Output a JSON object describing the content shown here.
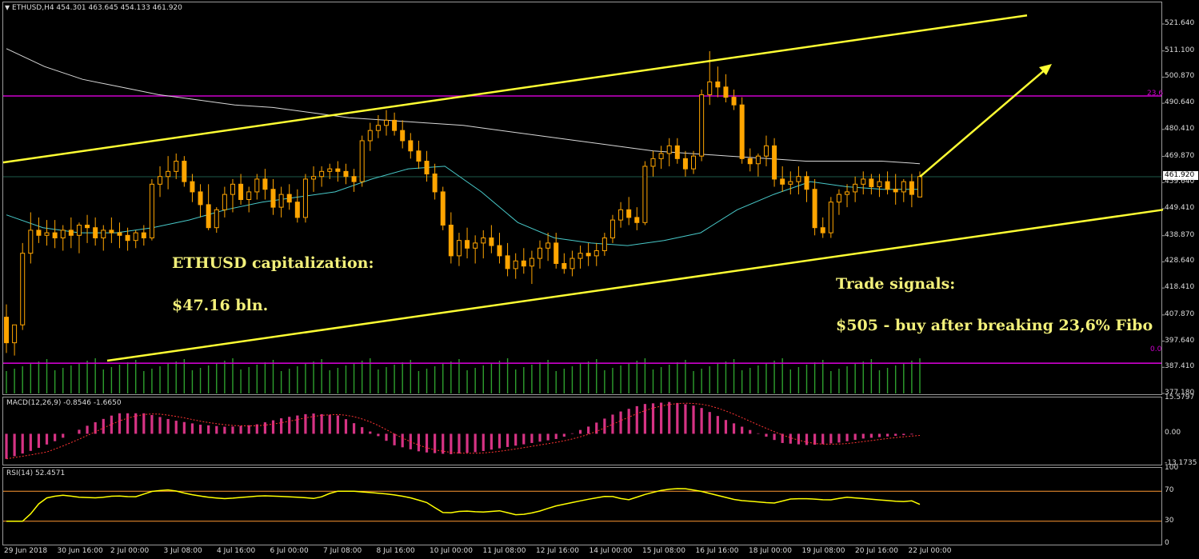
{
  "header": {
    "symbol_text": "ETHUSD,H4  454.301 463.645 454.133 461.920",
    "macd_text": "MACD(12,26,9) -0.8546 -1.6650",
    "rsi_text": "RSI(14) 52.4571"
  },
  "price_axis": [
    "521.640",
    "511.100",
    "500.870",
    "490.640",
    "480.410",
    "469.870",
    "459.640",
    "449.410",
    "438.870",
    "428.640",
    "418.410",
    "407.870",
    "397.640",
    "387.410",
    "377.180"
  ],
  "current_price": "461.920",
  "macd_axis": [
    "15.5797",
    "0.00",
    "-13.1735"
  ],
  "rsi_axis": [
    "100",
    "70",
    "30",
    "0"
  ],
  "time_axis": [
    "29 Jun 2018",
    "30 Jun 16:00",
    "2 Jul 00:00",
    "3 Jul 08:00",
    "4 Jul 16:00",
    "6 Jul 00:00",
    "7 Jul 08:00",
    "8 Jul 16:00",
    "10 Jul 00:00",
    "11 Jul 08:00",
    "12 Jul 16:00",
    "14 Jul 00:00",
    "15 Jul 08:00",
    "16 Jul 16:00",
    "18 Jul 00:00",
    "19 Jul 08:00",
    "20 Jul 16:00",
    "22 Jul 00:00"
  ],
  "fibo_levels": {
    "upper": "23.6",
    "lower": "0.0"
  },
  "annotations": {
    "cap_title": "ETHUSD capitalization:",
    "cap_value": "$47.16 bln.",
    "signals_title": "Trade signals:",
    "signals_text": "$505 - buy after breaking 23,6% Fibo"
  },
  "colors": {
    "background": "#000000",
    "candle": "#ffa500",
    "channel": "#ffff33",
    "fibo": "#cc00cc",
    "ma_slow": "#ffffff",
    "ma_fast": "#48c9c9",
    "volume": "#2ea02e",
    "macd": "#d63384",
    "rsi": "#ffff00",
    "rsi_levels": "#ff9933"
  },
  "chart_data": {
    "type": "candlestick",
    "instrument": "ETHUSD",
    "timeframe": "H4",
    "ylim": [
      377.18,
      521.64
    ],
    "bars": [
      [
        407,
        412,
        393,
        397
      ],
      [
        397,
        404,
        392,
        404
      ],
      [
        404,
        436,
        402,
        432
      ],
      [
        432,
        448,
        428,
        441
      ],
      [
        441,
        446,
        436,
        439
      ],
      [
        439,
        445,
        435,
        440
      ],
      [
        440,
        445,
        434,
        438
      ],
      [
        438,
        443,
        433,
        441
      ],
      [
        441,
        446,
        434,
        439
      ],
      [
        439,
        444,
        432,
        443
      ],
      [
        443,
        447,
        436,
        442
      ],
      [
        442,
        446,
        435,
        438
      ],
      [
        438,
        443,
        433,
        441
      ],
      [
        441,
        446,
        436,
        440
      ],
      [
        440,
        444,
        434,
        439
      ],
      [
        439,
        442,
        433,
        437
      ],
      [
        437,
        441,
        434,
        440
      ],
      [
        440,
        443,
        435,
        438
      ],
      [
        438,
        461,
        437,
        459
      ],
      [
        459,
        466,
        454,
        462
      ],
      [
        462,
        470,
        457,
        464
      ],
      [
        464,
        471,
        461,
        468
      ],
      [
        468,
        470,
        458,
        460
      ],
      [
        460,
        463,
        452,
        456
      ],
      [
        456,
        459,
        446,
        451
      ],
      [
        451,
        459,
        441,
        442
      ],
      [
        442,
        450,
        440,
        449
      ],
      [
        449,
        458,
        446,
        455
      ],
      [
        455,
        461,
        448,
        459
      ],
      [
        459,
        463,
        451,
        453
      ],
      [
        453,
        458,
        448,
        456
      ],
      [
        456,
        463,
        453,
        461
      ],
      [
        461,
        465,
        453,
        457
      ],
      [
        457,
        461,
        447,
        450
      ],
      [
        450,
        458,
        446,
        455
      ],
      [
        455,
        459,
        449,
        452
      ],
      [
        452,
        457,
        444,
        446
      ],
      [
        446,
        463,
        444,
        461
      ],
      [
        461,
        466,
        456,
        462
      ],
      [
        462,
        466,
        458,
        464
      ],
      [
        464,
        467,
        461,
        465
      ],
      [
        465,
        468,
        460,
        464
      ],
      [
        464,
        467,
        459,
        462
      ],
      [
        462,
        465,
        456,
        460
      ],
      [
        460,
        478,
        458,
        476
      ],
      [
        476,
        483,
        472,
        480
      ],
      [
        480,
        486,
        477,
        482
      ],
      [
        482,
        488,
        478,
        484
      ],
      [
        484,
        487,
        478,
        480
      ],
      [
        480,
        484,
        473,
        476
      ],
      [
        476,
        479,
        469,
        472
      ],
      [
        472,
        476,
        465,
        468
      ],
      [
        468,
        472,
        460,
        463
      ],
      [
        463,
        467,
        453,
        456
      ],
      [
        456,
        458,
        441,
        443
      ],
      [
        443,
        448,
        428,
        431
      ],
      [
        431,
        440,
        427,
        437
      ],
      [
        437,
        442,
        430,
        434
      ],
      [
        434,
        439,
        428,
        436
      ],
      [
        436,
        441,
        430,
        438
      ],
      [
        438,
        443,
        432,
        435
      ],
      [
        435,
        440,
        428,
        431
      ],
      [
        431,
        436,
        423,
        426
      ],
      [
        426,
        432,
        422,
        429
      ],
      [
        429,
        434,
        424,
        427
      ],
      [
        427,
        433,
        420,
        430
      ],
      [
        430,
        437,
        426,
        434
      ],
      [
        434,
        440,
        429,
        436
      ],
      [
        436,
        440,
        426,
        428
      ],
      [
        428,
        432,
        424,
        426
      ],
      [
        426,
        433,
        423,
        430
      ],
      [
        430,
        435,
        426,
        432
      ],
      [
        432,
        436,
        427,
        431
      ],
      [
        431,
        436,
        427,
        433
      ],
      [
        433,
        440,
        431,
        438
      ],
      [
        438,
        447,
        436,
        445
      ],
      [
        445,
        452,
        442,
        449
      ],
      [
        449,
        454,
        443,
        446
      ],
      [
        446,
        450,
        441,
        444
      ],
      [
        444,
        468,
        443,
        466
      ],
      [
        466,
        472,
        462,
        469
      ],
      [
        469,
        474,
        465,
        471
      ],
      [
        471,
        477,
        466,
        474
      ],
      [
        474,
        477,
        467,
        469
      ],
      [
        469,
        472,
        462,
        465
      ],
      [
        465,
        472,
        463,
        470
      ],
      [
        470,
        496,
        468,
        494
      ],
      [
        494,
        511,
        490,
        499
      ],
      [
        499,
        505,
        493,
        497
      ],
      [
        497,
        502,
        491,
        493
      ],
      [
        493,
        496,
        488,
        490
      ],
      [
        490,
        493,
        467,
        469
      ],
      [
        469,
        473,
        464,
        467
      ],
      [
        467,
        471,
        462,
        470
      ],
      [
        470,
        478,
        466,
        474
      ],
      [
        474,
        477,
        458,
        461
      ],
      [
        461,
        466,
        456,
        459
      ],
      [
        459,
        464,
        455,
        460
      ],
      [
        460,
        466,
        455,
        462
      ],
      [
        462,
        464,
        452,
        457
      ],
      [
        457,
        461,
        439,
        442
      ],
      [
        442,
        446,
        438,
        440
      ],
      [
        440,
        454,
        438,
        452
      ],
      [
        452,
        457,
        447,
        455
      ],
      [
        455,
        459,
        450,
        456
      ],
      [
        456,
        462,
        452,
        459
      ],
      [
        459,
        464,
        455,
        461
      ],
      [
        461,
        463,
        455,
        458
      ],
      [
        458,
        463,
        454,
        460
      ],
      [
        460,
        464,
        455,
        457
      ],
      [
        457,
        463,
        451,
        456
      ],
      [
        456,
        461,
        452,
        460
      ],
      [
        460,
        463,
        450,
        455
      ],
      [
        454,
        464,
        454,
        462
      ]
    ],
    "ma_slow": [
      512,
      505,
      500,
      497,
      494,
      492,
      490,
      489,
      487,
      485,
      484,
      483,
      482,
      480,
      478,
      476,
      474,
      472,
      471,
      470,
      469,
      468,
      468,
      468,
      467
    ],
    "ma_fast": [
      447,
      442,
      440,
      440,
      442,
      445,
      449,
      452,
      454,
      456,
      461,
      465,
      466,
      456,
      444,
      438,
      436,
      435,
      437,
      440,
      449,
      455,
      460,
      458,
      457,
      457
    ],
    "channel_upper": [
      [
        0,
        467.5
      ],
      [
        1280,
        525
      ]
    ],
    "channel_lower": [
      [
        130,
        390
      ],
      [
        1450,
        449
      ]
    ],
    "fibo_lines": [
      {
        "label": "23.6",
        "value": 493.5
      },
      {
        "label": "0.0",
        "value": 389
      }
    ],
    "signal_arrow": {
      "from_price": 461.9,
      "to_price": 506
    },
    "macd": {
      "ylim": [
        -13.1735,
        15.5797
      ]
    },
    "rsi": {
      "levels": [
        70,
        30
      ],
      "ylim": [
        0,
        100
      ]
    }
  }
}
